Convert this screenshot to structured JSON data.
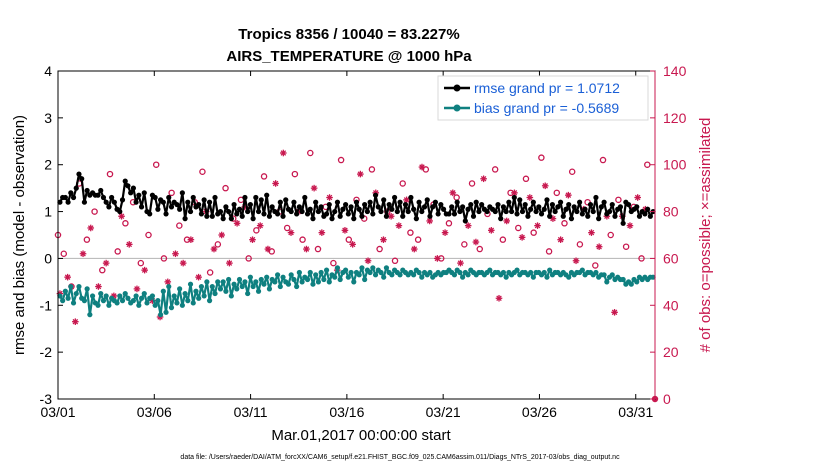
{
  "chart_data": {
    "type": "line",
    "title": "Tropics 8356 / 10040 = 83.227%",
    "subtitle": "AIRS_TEMPERATURE @ 1000 hPa",
    "xlabel": "Mar.01,2017 00:00:00 start",
    "ylabel": "rmse and bias (model - observation)",
    "y2label": "# of obs: o=possible; ×=assimilated",
    "footer": "data file: /Users/raeder/DAI/ATM_forcXX/CAM6_setup/f.e21.FHIST_BGC.f09_025.CAM6assim.011/Diags_NTrS_2017-03/obs_diag_output.nc",
    "xlim": [
      1,
      32
    ],
    "ylim": [
      -3,
      4
    ],
    "y2lim": [
      0,
      140
    ],
    "x_ticks": [
      {
        "value": 1,
        "label": "03/01"
      },
      {
        "value": 6,
        "label": "03/06"
      },
      {
        "value": 11,
        "label": "03/11"
      },
      {
        "value": 16,
        "label": "03/16"
      },
      {
        "value": 21,
        "label": "03/21"
      },
      {
        "value": 26,
        "label": "03/26"
      },
      {
        "value": 31,
        "label": "03/31"
      }
    ],
    "y_ticks": [
      -3,
      -2,
      -1,
      0,
      1,
      2,
      3,
      4
    ],
    "y2_ticks": [
      0,
      20,
      40,
      60,
      80,
      100,
      120,
      140
    ],
    "grid": false,
    "legend_position": "top-right",
    "series": [
      {
        "name": "rmse grand pr = 1.0712",
        "color": "#000000",
        "axis": "left",
        "marker": "circle",
        "values": [
          1.2,
          1.3,
          1.3,
          1.2,
          1.4,
          1.3,
          1.5,
          1.8,
          1.7,
          1.2,
          1.45,
          1.35,
          1.4,
          1.35,
          1.35,
          1.45,
          1.3,
          1.2,
          1.1,
          1.3,
          1.2,
          1.05,
          1.0,
          1.25,
          1.65,
          1.55,
          1.4,
          1.5,
          1.2,
          1.35,
          1.1,
          1.4,
          1.0,
          0.95,
          1.35,
          1.3,
          1.05,
          1.25,
          1.2,
          0.95,
          1.3,
          1.1,
          1.2,
          1.15,
          1.05,
          1.4,
          0.85,
          1.2,
          1.0,
          1.3,
          1.1,
          1.15,
          0.95,
          1.25,
          0.9,
          1.2,
          0.9,
          1.3,
          0.95,
          1.0,
          0.85,
          1.1,
          1.0,
          0.85,
          1.15,
          0.95,
          1.05,
          0.9,
          1.3,
          1.0,
          1.15,
          0.85,
          1.3,
          1.0,
          1.25,
          0.95,
          1.35,
          0.9,
          1.1,
          1.0,
          0.95,
          1.2,
          0.9,
          1.25,
          1.05,
          1.0,
          1.2,
          0.95,
          1.1,
          1.0,
          1.3,
          0.95,
          1.05,
          0.85,
          1.2,
          1.0,
          1.1,
          0.9,
          0.95,
          1.15,
          0.85,
          1.0,
          1.2,
          0.9,
          1.05,
          1.15,
          0.95,
          1.1,
          0.85,
          1.2,
          1.05,
          0.9,
          1.15,
          1.0,
          1.2,
          0.95,
          1.35,
          1.1,
          1.0,
          1.25,
          0.9,
          1.15,
          1.05,
          1.3,
          1.0,
          1.2,
          0.9,
          1.15,
          1.0,
          1.3,
          1.05,
          0.85,
          1.2,
          1.0,
          1.1,
          1.25,
          0.9,
          1.1,
          1.2,
          0.95,
          1.15,
          1.05,
          0.95,
          0.95,
          1.1,
          0.95,
          1.2,
          1.0,
          1.1,
          0.8,
          1.05,
          1.15,
          0.9,
          1.2,
          1.0,
          1.15,
          1.05,
          1.0,
          1.1,
          1.05,
          1.0,
          1.15,
          0.85,
          1.1,
          1.0,
          1.2,
          1.0,
          1.3,
          0.95,
          1.25,
          1.0,
          1.15,
          0.9,
          1.05,
          1.2,
          1.0,
          1.1,
          0.95,
          1.05,
          1.25,
          0.9,
          1.15,
          1.0,
          1.1,
          1.2,
          0.9,
          1.05,
          1.15,
          0.85,
          1.1,
          1.0,
          1.2,
          0.95,
          1.05,
          0.9,
          1.15,
          1.0,
          1.3,
          0.85,
          1.1,
          1.2,
          0.95,
          1.0,
          1.15,
          0.9,
          1.05,
          1.1,
          0.75,
          1.2,
          1.15,
          1.0,
          1.05,
          1.1,
          0.9,
          1.0,
          0.95,
          1.05,
          0.9,
          1.0
        ]
      },
      {
        "name": "bias grand pr = -0.5689",
        "color": "#0f8080",
        "axis": "left",
        "marker": "circle",
        "values": [
          -0.8,
          -0.9,
          -0.7,
          -0.85,
          -0.6,
          -0.95,
          -0.75,
          -0.6,
          -0.85,
          -0.9,
          -0.65,
          -1.2,
          -0.8,
          -0.95,
          -1.0,
          -0.75,
          -0.9,
          -0.8,
          -1.0,
          -0.85,
          -0.9,
          -0.95,
          -0.8,
          -0.9,
          -0.75,
          -0.85,
          -0.95,
          -0.9,
          -0.8,
          -1.0,
          -0.85,
          -0.75,
          -0.95,
          -0.85,
          -0.8,
          -1.0,
          -0.9,
          -1.2,
          -0.7,
          -1.15,
          -0.6,
          -1.05,
          -0.8,
          -0.95,
          -0.65,
          -1.0,
          -0.75,
          -0.9,
          -0.55,
          -0.95,
          -0.7,
          -0.85,
          -0.6,
          -0.8,
          -0.5,
          -0.9,
          -0.6,
          -0.75,
          -0.5,
          -0.65,
          -0.5,
          -0.7,
          -0.45,
          -0.8,
          -0.55,
          -0.65,
          -0.45,
          -0.6,
          -0.5,
          -0.75,
          -0.4,
          -0.6,
          -0.5,
          -0.7,
          -0.45,
          -0.55,
          -0.4,
          -0.65,
          -0.45,
          -0.5,
          -0.35,
          -0.6,
          -0.4,
          -0.5,
          -0.55,
          -0.35,
          -0.45,
          -0.6,
          -0.3,
          -0.5,
          -0.4,
          -0.45,
          -0.3,
          -0.55,
          -0.35,
          -0.5,
          -0.3,
          -0.45,
          -0.25,
          -0.5,
          -0.35,
          -0.4,
          -0.2,
          -0.45,
          -0.3,
          -0.25,
          -0.4,
          -0.3,
          -0.5,
          -0.3,
          -0.35,
          -0.2,
          -0.45,
          -0.25,
          -0.3,
          -0.2,
          -0.35,
          -0.25,
          -0.3,
          -0.4,
          -0.2,
          -0.3,
          -0.35,
          -0.25,
          -0.3,
          -0.35,
          -0.25,
          -0.3,
          -0.35,
          -0.3,
          -0.35,
          -0.25,
          -0.3,
          -0.4,
          -0.3,
          -0.35,
          -0.3,
          -0.4,
          -0.35,
          -0.3,
          -0.35,
          -0.3,
          -0.3,
          -0.25,
          -0.3,
          -0.35,
          -0.25,
          -0.3,
          -0.4,
          -0.3,
          -0.35,
          -0.25,
          -0.3,
          -0.35,
          -0.3,
          -0.3,
          -0.35,
          -0.3,
          -0.25,
          -0.35,
          -0.3,
          -0.3,
          -0.35,
          -0.3,
          -0.4,
          -0.3,
          -0.35,
          -0.3,
          -0.25,
          -0.35,
          -0.3,
          -0.3,
          -0.35,
          -0.3,
          -0.4,
          -0.3,
          -0.3,
          -0.35,
          -0.3,
          -0.4,
          -0.25,
          -0.35,
          -0.3,
          -0.3,
          -0.35,
          -0.3,
          -0.35,
          -0.4,
          -0.3,
          -0.35,
          -0.3,
          -0.3,
          -0.25,
          -0.35,
          -0.3,
          -0.3,
          -0.35,
          -0.3,
          -0.4,
          -0.35,
          -0.35,
          -0.5,
          -0.4,
          -0.35,
          -0.45,
          -0.4,
          -0.45,
          -0.45,
          -0.55,
          -0.5,
          -0.55,
          -0.45,
          -0.5,
          -0.4,
          -0.45,
          -0.4,
          -0.45,
          -0.4,
          -0.4
        ]
      },
      {
        "name": "possible (o)",
        "color": "#c8184f",
        "axis": "right",
        "marker": "o",
        "x": [
          1.0,
          1.3,
          1.7,
          2.1,
          2.5,
          2.9,
          3.3,
          3.7,
          4.1,
          4.5,
          4.9,
          5.3,
          5.7,
          6.1,
          6.5,
          6.9,
          7.3,
          7.7,
          8.1,
          8.5,
          8.9,
          9.3,
          9.7,
          10.1,
          10.5,
          10.9,
          11.3,
          11.7,
          12.1,
          12.5,
          12.9,
          13.3,
          13.7,
          14.1,
          14.5,
          14.9,
          15.3,
          15.7,
          16.1,
          16.5,
          16.9,
          17.3,
          17.7,
          18.1,
          18.5,
          18.9,
          19.3,
          19.7,
          20.1,
          20.5,
          20.9,
          21.3,
          21.7,
          22.1,
          22.5,
          22.9,
          23.3,
          23.7,
          24.1,
          24.5,
          24.9,
          25.3,
          25.7,
          26.1,
          26.5,
          26.9,
          27.3,
          27.7,
          28.1,
          28.5,
          28.9,
          29.3,
          29.7,
          30.1,
          30.5,
          30.9,
          31.3,
          31.6
        ],
        "values": [
          70,
          62,
          48,
          92,
          68,
          80,
          55,
          96,
          63,
          75,
          84,
          58,
          70,
          100,
          60,
          88,
          74,
          68,
          84,
          97,
          54,
          66,
          90,
          77,
          85,
          60,
          72,
          95,
          63,
          80,
          73,
          96,
          68,
          105,
          64,
          82,
          58,
          102,
          68,
          85,
          77,
          98,
          64,
          80,
          59,
          92,
          71,
          68,
          98,
          83,
          60,
          75,
          86,
          66,
          92,
          64,
          79,
          98,
          68,
          88,
          73,
          94,
          71,
          103,
          63,
          88,
          75,
          97,
          66,
          84,
          57,
          102,
          70,
          85,
          65,
          82,
          60,
          100
        ]
      },
      {
        "name": "assimilated (×)",
        "color": "#c8184f",
        "axis": "right",
        "marker": "x",
        "x": [
          1.1,
          1.5,
          1.9,
          2.3,
          2.7,
          3.1,
          3.5,
          3.9,
          4.3,
          4.7,
          5.1,
          5.5,
          5.9,
          6.3,
          6.7,
          7.1,
          7.5,
          7.9,
          8.3,
          8.7,
          9.1,
          9.5,
          9.9,
          10.3,
          10.7,
          11.1,
          11.5,
          11.9,
          12.3,
          12.7,
          13.1,
          13.5,
          13.9,
          14.3,
          14.7,
          15.1,
          15.5,
          15.9,
          16.3,
          16.7,
          17.1,
          17.5,
          17.9,
          18.3,
          18.7,
          19.1,
          19.5,
          19.9,
          20.3,
          20.7,
          21.1,
          21.5,
          21.9,
          22.3,
          22.7,
          23.1,
          23.5,
          23.9,
          24.3,
          24.7,
          25.1,
          25.5,
          25.9,
          26.3,
          26.7,
          27.1,
          27.5,
          27.9,
          28.3,
          28.7,
          29.1,
          29.5,
          29.9,
          30.3,
          30.7,
          31.1,
          31.5
        ],
        "values": [
          45,
          52,
          33,
          62,
          73,
          48,
          58,
          44,
          78,
          66,
          47,
          55,
          42,
          35,
          50,
          62,
          58,
          68,
          52,
          80,
          64,
          70,
          58,
          75,
          82,
          68,
          74,
          64,
          92,
          105,
          71,
          80,
          64,
          90,
          71,
          86,
          55,
          72,
          66,
          96,
          59,
          88,
          68,
          78,
          74,
          85,
          64,
          99,
          76,
          60,
          71,
          88,
          58,
          74,
          67,
          94,
          72,
          43,
          76,
          88,
          69,
          86,
          74,
          91,
          77,
          68,
          87,
          59,
          81,
          71,
          65,
          78,
          37,
          78,
          74,
          86,
          81
        ]
      }
    ]
  }
}
